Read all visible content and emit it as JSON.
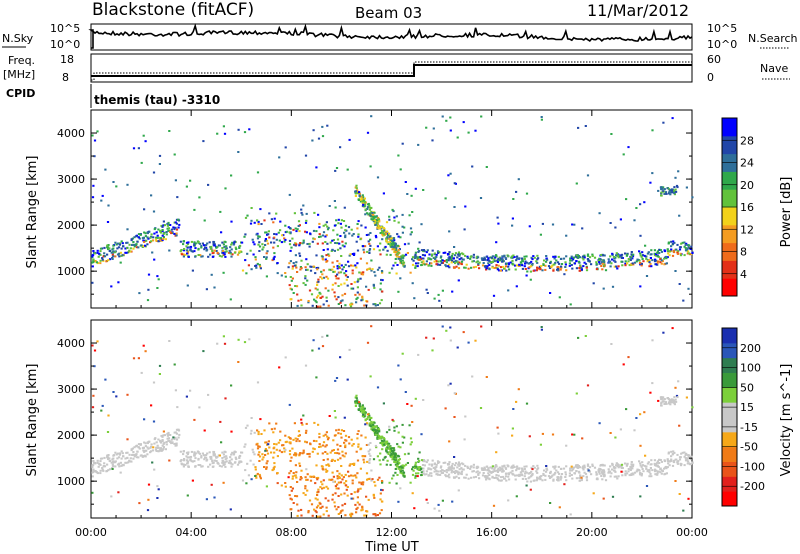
{
  "header": {
    "station": "Blackstone (fitACF)",
    "beam": "Beam 03",
    "date": "11/Mar/2012"
  },
  "status_panels": {
    "left_nsky": "N.Sky",
    "right_nsearch": "N.Search",
    "nsky_ticks": [
      "10^5",
      "10^0"
    ],
    "freq_label": "Freq.",
    "freq_unit": "[MHz]",
    "cpid_label": "CPID",
    "nave_label": "Nave",
    "freq_ticks": [
      "18",
      "8"
    ],
    "nave_ticks": [
      "60",
      "0"
    ],
    "cpid_text": "themis (tau) -3310"
  },
  "chart_data": [
    {
      "type": "heatmap",
      "name": "power",
      "ylabel": "Slant Range [km]",
      "ylim": [
        200,
        4500
      ],
      "yticks": [
        "4000",
        "3000",
        "2000",
        "1000"
      ],
      "colorbar_label": "Power [dB]",
      "colorbar_ticks": [
        "28",
        "24",
        "20",
        "16",
        "12",
        "8",
        "4"
      ],
      "colorbar_colors": [
        "#0000ff",
        "#2146a8",
        "#2e6f9a",
        "#2fa84b",
        "#62c23b",
        "#f3d21b",
        "#f49c21",
        "#ef6b1b",
        "#e33018",
        "#ff0000"
      ]
    },
    {
      "type": "heatmap",
      "name": "velocity",
      "ylabel": "Slant Range [km]",
      "ylim": [
        200,
        4500
      ],
      "yticks": [
        "4000",
        "3000",
        "2000",
        "1000"
      ],
      "colorbar_label": "Velocity [m s^-1]",
      "colorbar_ticks": [
        "200",
        "100",
        "50",
        "15",
        "-15",
        "-50",
        "-100",
        "-200"
      ],
      "colorbar_colors": [
        "#1a2fb0",
        "#2a57b8",
        "#2e7d50",
        "#3a9a3a",
        "#7ccf3a",
        "#c8c8c8",
        "#c8c8c8",
        "#f6a818",
        "#f07b17",
        "#e9541a",
        "#e2201c",
        "#ff0000"
      ]
    }
  ],
  "x_axis": {
    "xlabel": "Time UT",
    "xticks": [
      "00:00",
      "04:00",
      "08:00",
      "12:00",
      "16:00",
      "20:00",
      "00:00"
    ],
    "xlim_hours": [
      0,
      24
    ]
  }
}
